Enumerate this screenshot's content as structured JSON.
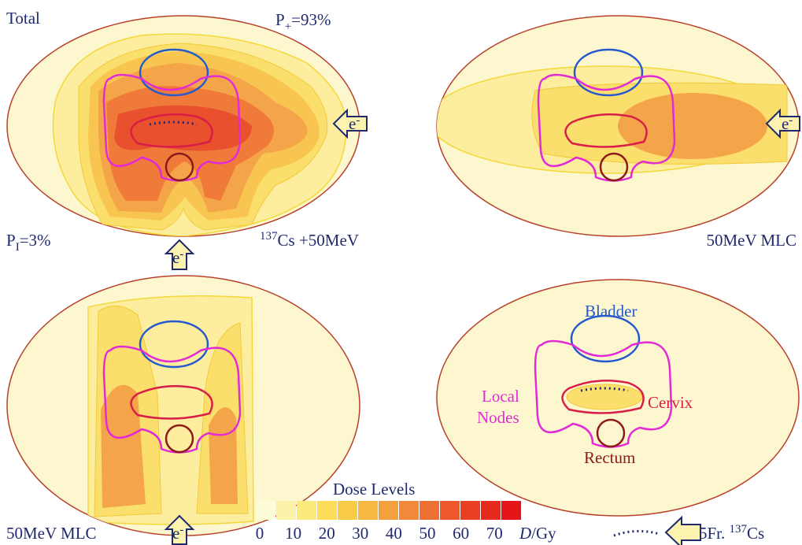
{
  "panels": [
    {
      "title": "Total",
      "p_plus": {
        "symbol": "P",
        "subscript": "+",
        "value": "=93%"
      },
      "p_i": {
        "symbol": "P",
        "subscript": "I",
        "value": "=3%"
      },
      "caption": {
        "superscript": "137",
        "element": "Cs",
        "rest": " +50MeV"
      }
    },
    {
      "caption": "50MeV MLC"
    },
    {
      "caption": "50MeV MLC"
    },
    {
      "structures": {
        "bladder": "Bladder",
        "local_nodes": [
          "Local",
          "Nodes"
        ],
        "cervix": "Cervix",
        "rectum": "Rectum"
      }
    }
  ],
  "electron": {
    "symbol": "e",
    "charge": "-"
  },
  "legend": {
    "title": "Dose Levels",
    "colors": [
      "#fefbd8",
      "#fdf3a8",
      "#fce97c",
      "#fbdd5a",
      "#f9cc48",
      "#f7b844",
      "#f4a03f",
      "#f2883a",
      "#ef7034",
      "#ec582c",
      "#e94024",
      "#e72a1e",
      "#e5161a"
    ],
    "ticks": [
      0,
      10,
      20,
      30,
      40,
      50,
      60,
      70
    ],
    "unit_symbol": "D",
    "unit_text": "/Gy"
  },
  "brachy": {
    "text": "5Fr. ",
    "superscript": "137",
    "element": "Cs"
  }
}
